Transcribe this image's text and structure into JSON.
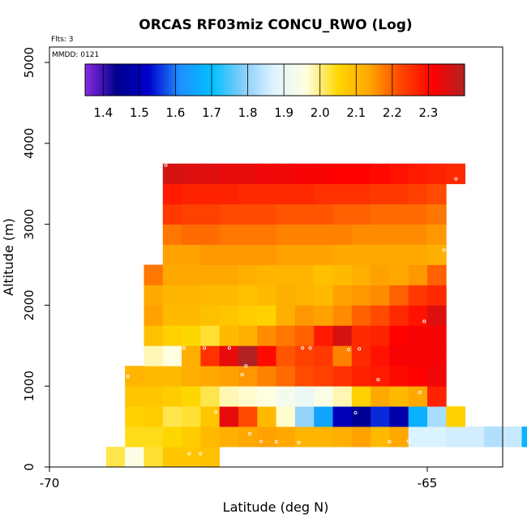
{
  "chart_data": {
    "type": "heatmap",
    "title": "ORCAS RF03miz CONCU_RWO (Log)",
    "xlabel": "Latitude (deg N)",
    "ylabel": "Altitude (m)",
    "flts_label": "Flts: 3",
    "mmdd_label": "MMDD: 0121",
    "xlim": [
      -70,
      -64
    ],
    "ylim": [
      0,
      5200
    ],
    "x_ticks": [
      {
        "v": -70,
        "label": "-70"
      },
      {
        "v": -65,
        "label": "-65"
      }
    ],
    "y_ticks": [
      {
        "v": 0,
        "label": "0"
      },
      {
        "v": 1000,
        "label": "1000"
      },
      {
        "v": 2000,
        "label": "2000"
      },
      {
        "v": 3000,
        "label": "3000"
      },
      {
        "v": 4000,
        "label": "4000"
      },
      {
        "v": 5000,
        "label": "5000"
      }
    ],
    "grid": false,
    "colorbar": {
      "range": [
        1.35,
        2.4
      ],
      "ticks": [
        1.4,
        1.5,
        1.6,
        1.7,
        1.8,
        1.9,
        2.0,
        2.1,
        2.2,
        2.3
      ],
      "tick_labels": [
        "1.4",
        "1.5",
        "1.6",
        "1.7",
        "1.8",
        "1.9",
        "2.0",
        "2.1",
        "2.2",
        "2.3"
      ],
      "colors": [
        "#8a2be2",
        "#00008b",
        "#0000cd",
        "#1e90ff",
        "#00bfff",
        "#87cefa",
        "#e0f4ff",
        "#ffffe0",
        "#ffd700",
        "#ffa500",
        "#ff4500",
        "#ff0000",
        "#b22222"
      ]
    },
    "cell_width_deg": 0.25,
    "cell_height_m": 250,
    "rows": [
      {
        "alt": 0,
        "lat0": -69.25,
        "values": [
          2.02,
          1.95,
          2.03,
          2.08,
          2.08,
          2.09
        ]
      },
      {
        "alt": 250,
        "lat0": -69.0,
        "values": [
          2.04,
          2.04,
          2.05,
          2.07,
          2.1,
          2.12,
          2.13,
          2.14,
          2.13,
          2.11,
          2.11,
          2.12,
          2.14,
          2.1,
          2.13,
          1.87,
          1.87,
          1.86,
          1.86,
          1.83,
          1.85,
          1.68
        ]
      },
      {
        "alt": 500,
        "lat0": -69.0,
        "values": [
          2.06,
          2.07,
          2.02,
          2.03,
          2.08,
          2.34,
          2.22,
          2.1,
          1.97,
          1.8,
          1.65,
          1.5,
          1.45,
          1.55,
          1.48,
          1.67,
          1.82,
          2.06
        ]
      },
      {
        "alt": 750,
        "lat0": -69.0,
        "values": [
          2.08,
          2.08,
          2.07,
          2.05,
          2.02,
          1.98,
          1.97,
          1.96,
          1.93,
          1.91,
          1.95,
          1.98,
          2.06,
          2.13,
          2.1,
          2.13,
          2.27
        ]
      },
      {
        "alt": 1000,
        "lat0": -69.0,
        "values": [
          2.11,
          2.1,
          2.1,
          2.12,
          2.13,
          2.14,
          2.15,
          2.17,
          2.19,
          2.22,
          2.23,
          2.25,
          2.27,
          2.28,
          2.3,
          2.31,
          2.33
        ]
      },
      {
        "alt": 1250,
        "lat0": -68.75,
        "values": [
          1.98,
          1.96,
          2.12,
          2.25,
          2.34,
          2.4,
          2.3,
          2.21,
          2.23,
          2.24,
          2.17,
          2.26,
          2.29,
          2.32,
          2.32,
          2.32
        ]
      },
      {
        "alt": 1500,
        "lat0": -68.75,
        "values": [
          2.09,
          2.06,
          2.05,
          2.03,
          2.1,
          2.12,
          2.16,
          2.18,
          2.2,
          2.28,
          2.36,
          2.26,
          2.27,
          2.31,
          2.32,
          2.32
        ]
      },
      {
        "alt": 1750,
        "lat0": -68.75,
        "values": [
          2.14,
          2.1,
          2.1,
          2.09,
          2.08,
          2.07,
          2.06,
          2.12,
          2.15,
          2.14,
          2.16,
          2.2,
          2.22,
          2.26,
          2.29,
          2.35
        ]
      },
      {
        "alt": 2000,
        "lat0": -68.75,
        "values": [
          2.13,
          2.11,
          2.11,
          2.1,
          2.1,
          2.09,
          2.1,
          2.12,
          2.11,
          2.1,
          2.14,
          2.15,
          2.16,
          2.2,
          2.24,
          2.26
        ]
      },
      {
        "alt": 2250,
        "lat0": -68.75,
        "values": [
          2.18,
          2.13,
          2.13,
          2.13,
          2.13,
          2.12,
          2.11,
          2.11,
          2.11,
          2.09,
          2.1,
          2.12,
          2.14,
          2.13,
          2.15,
          2.2
        ]
      },
      {
        "alt": 2500,
        "lat0": -68.5,
        "values": [
          2.14,
          2.14,
          2.15,
          2.15,
          2.15,
          2.15,
          2.14,
          2.14,
          2.14,
          2.13,
          2.13,
          2.13,
          2.13,
          2.13,
          2.12
        ]
      },
      {
        "alt": 2750,
        "lat0": -68.5,
        "values": [
          2.18,
          2.19,
          2.19,
          2.18,
          2.18,
          2.18,
          2.17,
          2.17,
          2.17,
          2.17,
          2.16,
          2.16,
          2.16,
          2.16,
          2.15
        ]
      },
      {
        "alt": 3000,
        "lat0": -68.5,
        "values": [
          2.24,
          2.23,
          2.23,
          2.22,
          2.22,
          2.22,
          2.21,
          2.21,
          2.21,
          2.2,
          2.2,
          2.19,
          2.19,
          2.19,
          2.18
        ]
      },
      {
        "alt": 3250,
        "lat0": -68.5,
        "values": [
          2.28,
          2.27,
          2.27,
          2.27,
          2.26,
          2.26,
          2.26,
          2.26,
          2.25,
          2.25,
          2.25,
          2.24,
          2.24,
          2.23,
          2.22
        ]
      },
      {
        "alt": 3500,
        "lat0": -68.5,
        "values": [
          2.36,
          2.35,
          2.35,
          2.34,
          2.34,
          2.33,
          2.33,
          2.32,
          2.32,
          2.31,
          2.31,
          2.3,
          2.29,
          2.28,
          2.27,
          2.26
        ]
      }
    ],
    "markers": [
      [
        -68.46,
        3730
      ],
      [
        -64.62,
        3560
      ],
      [
        -64.78,
        2680
      ],
      [
        -65.04,
        1800
      ],
      [
        -68.22,
        1470
      ],
      [
        -67.95,
        1470
      ],
      [
        -67.62,
        1470
      ],
      [
        -67.4,
        1250
      ],
      [
        -67.45,
        1140
      ],
      [
        -66.65,
        1470
      ],
      [
        -66.55,
        1470
      ],
      [
        -66.04,
        1450
      ],
      [
        -65.9,
        1460
      ],
      [
        -65.65,
        1080
      ],
      [
        -65.1,
        920
      ],
      [
        -68.96,
        1120
      ],
      [
        -67.8,
        680
      ],
      [
        -66.8,
        870
      ],
      [
        -65.95,
        670
      ],
      [
        -68.87,
        165
      ],
      [
        -68.15,
        165
      ],
      [
        -68.0,
        165
      ],
      [
        -66.7,
        300
      ],
      [
        -67.0,
        310
      ],
      [
        -67.2,
        315
      ],
      [
        -67.35,
        410
      ],
      [
        -65.5,
        310
      ],
      [
        -65.25,
        320
      ]
    ]
  }
}
